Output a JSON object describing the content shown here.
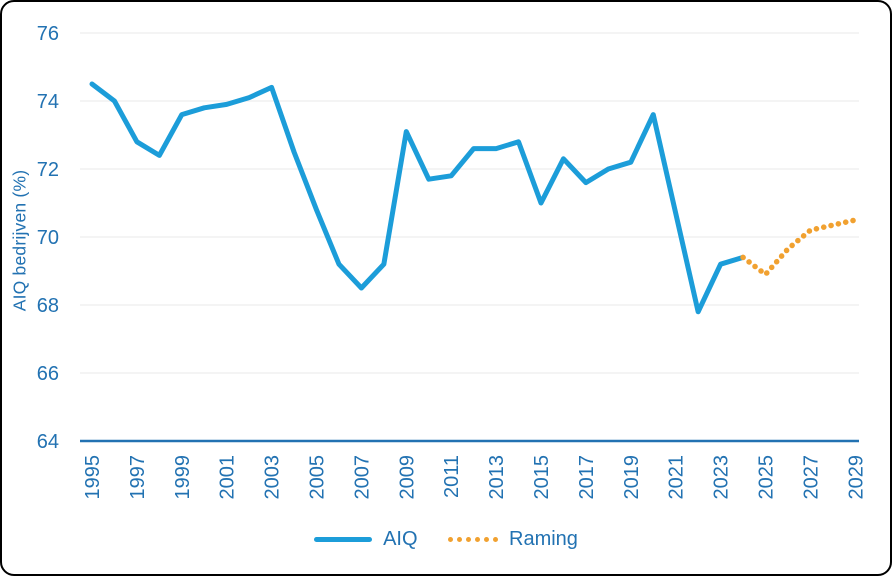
{
  "y_axis_title": "AIQ bedrijven (%)",
  "legend": {
    "aiq_label": "AIQ",
    "raming_label": "Raming"
  },
  "colors": {
    "aiq_line": "#1C9DD9",
    "raming_line": "#F1A130",
    "axis_text": "#2272B2",
    "axis_line": "#2272B2",
    "gridline": "#EDEDED",
    "background": "#FFFFFF",
    "frame_border": "#000000"
  },
  "chart_data": {
    "type": "line",
    "title": "",
    "xlabel": "",
    "ylabel": "AIQ bedrijven (%)",
    "ylim": [
      64,
      76
    ],
    "grid": "horizontal-only",
    "legend_position": "bottom",
    "y_ticks": [
      76,
      74,
      72,
      70,
      68,
      66,
      64
    ],
    "x_ticks": [
      1995,
      1997,
      1999,
      2001,
      2003,
      2005,
      2007,
      2009,
      2011,
      2013,
      2015,
      2017,
      2019,
      2021,
      2023,
      2025,
      2027,
      2029
    ],
    "series": [
      {
        "name": "AIQ",
        "style": "solid",
        "color": "#1C9DD9",
        "x": [
          1995,
          1996,
          1997,
          1998,
          1999,
          2000,
          2001,
          2002,
          2003,
          2004,
          2005,
          2006,
          2007,
          2008,
          2009,
          2010,
          2011,
          2012,
          2013,
          2014,
          2015,
          2016,
          2017,
          2018,
          2019,
          2020,
          2021,
          2022,
          2023,
          2024
        ],
        "values": [
          74.5,
          74.0,
          72.8,
          72.4,
          73.6,
          73.8,
          73.9,
          74.1,
          74.4,
          72.5,
          70.8,
          69.2,
          68.5,
          69.2,
          73.1,
          71.7,
          71.8,
          72.6,
          72.6,
          72.8,
          71.0,
          72.3,
          71.6,
          72.0,
          72.2,
          73.6,
          70.7,
          67.8,
          69.2,
          69.4
        ]
      },
      {
        "name": "Raming",
        "style": "dotted",
        "color": "#F1A130",
        "x": [
          2024,
          2025,
          2026,
          2027,
          2028,
          2029
        ],
        "values": [
          69.4,
          68.9,
          69.65,
          70.2,
          70.35,
          70.5
        ]
      }
    ]
  }
}
